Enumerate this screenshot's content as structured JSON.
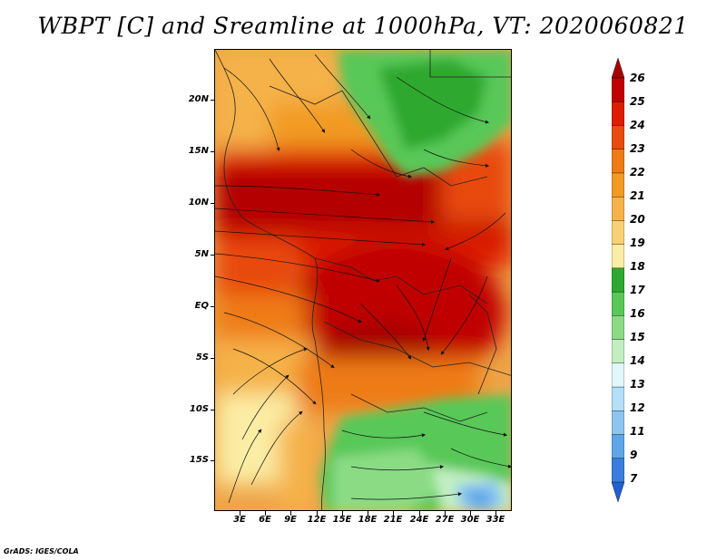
{
  "title": "WBPT [C] and Sreamline at 1000hPa, VT: 2020060821",
  "footer": "GrADS: IGES/COLA",
  "lat_labels": [
    "20N",
    "15N",
    "10N",
    "5N",
    "EQ",
    "5S",
    "10S",
    "15S"
  ],
  "lon_labels": [
    "3E",
    "6E",
    "9E",
    "12E",
    "15E",
    "18E",
    "21E",
    "24E",
    "27E",
    "30E",
    "33E"
  ],
  "colorbar": {
    "labels": [
      "26",
      "25",
      "24",
      "23",
      "22",
      "21",
      "20",
      "19",
      "18",
      "17",
      "16",
      "15",
      "14",
      "13",
      "12",
      "11",
      "9",
      "7"
    ],
    "colors": [
      "#a50000",
      "#c00000",
      "#dd1d00",
      "#e84a10",
      "#ee7b15",
      "#f29a23",
      "#f5b24a",
      "#f8d175",
      "#fbeda4",
      "#2fa82f",
      "#58c858",
      "#8bdb85",
      "#c2efc2",
      "#e2f7fb",
      "#b3dff8",
      "#8cc6f0",
      "#5fa6e8",
      "#3a7ddc",
      "#1f5fcf"
    ]
  }
}
